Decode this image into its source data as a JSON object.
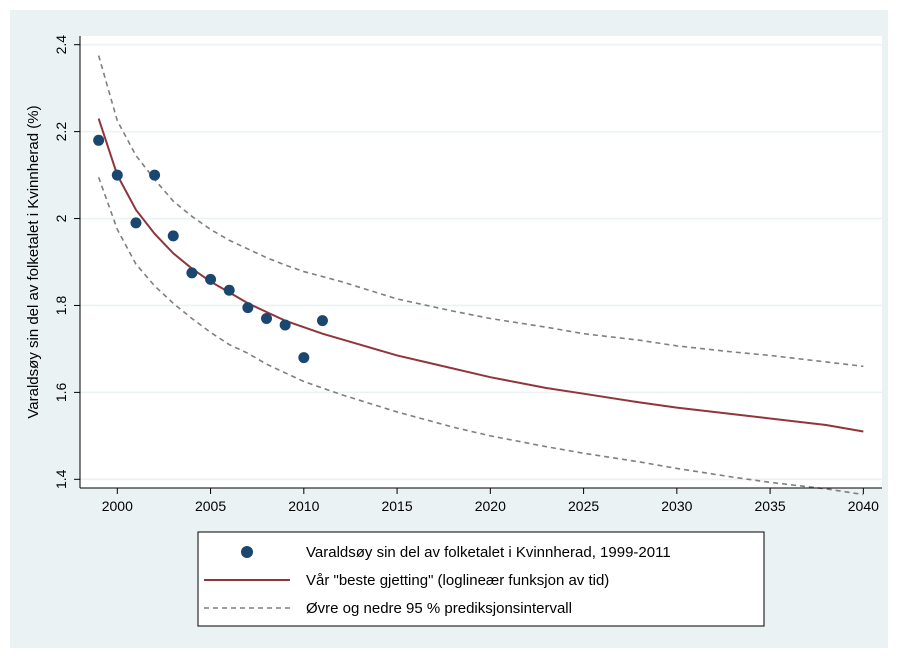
{
  "chart_data": {
    "type": "line",
    "ylabel": "Varaldsøy sin del av folketalet i Kvinnherad (%)",
    "xlabel": "",
    "xlim": [
      1999,
      2040
    ],
    "ylim": [
      1.38,
      2.42
    ],
    "x_ticks": [
      2000,
      2005,
      2010,
      2015,
      2020,
      2025,
      2030,
      2035,
      2040
    ],
    "y_ticks": [
      {
        "value": 1.4,
        "label": "1.4"
      },
      {
        "value": 1.6,
        "label": "1.6"
      },
      {
        "value": 1.8,
        "label": "1.8"
      },
      {
        "value": 2.0,
        "label": "2"
      },
      {
        "value": 2.2,
        "label": "2.2"
      },
      {
        "value": 2.4,
        "label": "2.4"
      }
    ],
    "grid": "horizontal",
    "legend_position": "bottom",
    "colors": {
      "background": "#eaf2f3",
      "plot_background": "#ffffff",
      "observed": "#1a476f",
      "fit": "#90353b",
      "interval": "#7f7f7f",
      "grid": "#eaf2f3"
    },
    "series": [
      {
        "name": "Varaldsøy sin del av folketalet i Kvinnherad, 1999-2011",
        "style": "markers",
        "points": [
          [
            1999,
            2.18
          ],
          [
            2000,
            2.1
          ],
          [
            2001,
            1.99
          ],
          [
            2002,
            2.1
          ],
          [
            2003,
            1.96
          ],
          [
            2004,
            1.875
          ],
          [
            2005,
            1.86
          ],
          [
            2006,
            1.835
          ],
          [
            2007,
            1.795
          ],
          [
            2008,
            1.77
          ],
          [
            2009,
            1.755
          ],
          [
            2010,
            1.68
          ],
          [
            2011,
            1.765
          ]
        ]
      },
      {
        "name": "Vår \"beste gjetting\" (loglineær funksjon av tid)",
        "style": "solid",
        "points": [
          [
            1999,
            2.23
          ],
          [
            2000,
            2.1
          ],
          [
            2001,
            2.02
          ],
          [
            2002,
            1.965
          ],
          [
            2003,
            1.92
          ],
          [
            2004,
            1.885
          ],
          [
            2005,
            1.855
          ],
          [
            2006,
            1.83
          ],
          [
            2007,
            1.805
          ],
          [
            2008,
            1.785
          ],
          [
            2009,
            1.765
          ],
          [
            2010,
            1.75
          ],
          [
            2011,
            1.735
          ],
          [
            2013,
            1.71
          ],
          [
            2015,
            1.685
          ],
          [
            2017,
            1.665
          ],
          [
            2020,
            1.635
          ],
          [
            2023,
            1.61
          ],
          [
            2025,
            1.597
          ],
          [
            2028,
            1.577
          ],
          [
            2030,
            1.565
          ],
          [
            2033,
            1.55
          ],
          [
            2035,
            1.54
          ],
          [
            2038,
            1.525
          ],
          [
            2040,
            1.51
          ]
        ]
      },
      {
        "name": "Øvre og nedre 95 % prediksjonsintervall",
        "style": "dashed",
        "upper": [
          [
            1999,
            2.375
          ],
          [
            2000,
            2.225
          ],
          [
            2001,
            2.145
          ],
          [
            2002,
            2.09
          ],
          [
            2003,
            2.04
          ],
          [
            2004,
            2.005
          ],
          [
            2005,
            1.975
          ],
          [
            2006,
            1.95
          ],
          [
            2007,
            1.93
          ],
          [
            2008,
            1.91
          ],
          [
            2009,
            1.893
          ],
          [
            2010,
            1.878
          ],
          [
            2012,
            1.855
          ],
          [
            2015,
            1.815
          ],
          [
            2018,
            1.787
          ],
          [
            2020,
            1.77
          ],
          [
            2023,
            1.75
          ],
          [
            2025,
            1.735
          ],
          [
            2028,
            1.72
          ],
          [
            2030,
            1.707
          ],
          [
            2033,
            1.693
          ],
          [
            2035,
            1.685
          ],
          [
            2038,
            1.67
          ],
          [
            2040,
            1.66
          ]
        ],
        "lower": [
          [
            1999,
            2.095
          ],
          [
            2000,
            1.975
          ],
          [
            2001,
            1.895
          ],
          [
            2002,
            1.845
          ],
          [
            2003,
            1.805
          ],
          [
            2004,
            1.77
          ],
          [
            2005,
            1.738
          ],
          [
            2006,
            1.71
          ],
          [
            2007,
            1.69
          ],
          [
            2008,
            1.665
          ],
          [
            2009,
            1.645
          ],
          [
            2010,
            1.625
          ],
          [
            2012,
            1.595
          ],
          [
            2015,
            1.555
          ],
          [
            2018,
            1.52
          ],
          [
            2020,
            1.5
          ],
          [
            2023,
            1.475
          ],
          [
            2025,
            1.46
          ],
          [
            2028,
            1.44
          ],
          [
            2030,
            1.425
          ],
          [
            2033,
            1.405
          ],
          [
            2035,
            1.393
          ],
          [
            2038,
            1.378
          ],
          [
            2040,
            1.365
          ]
        ]
      }
    ]
  }
}
